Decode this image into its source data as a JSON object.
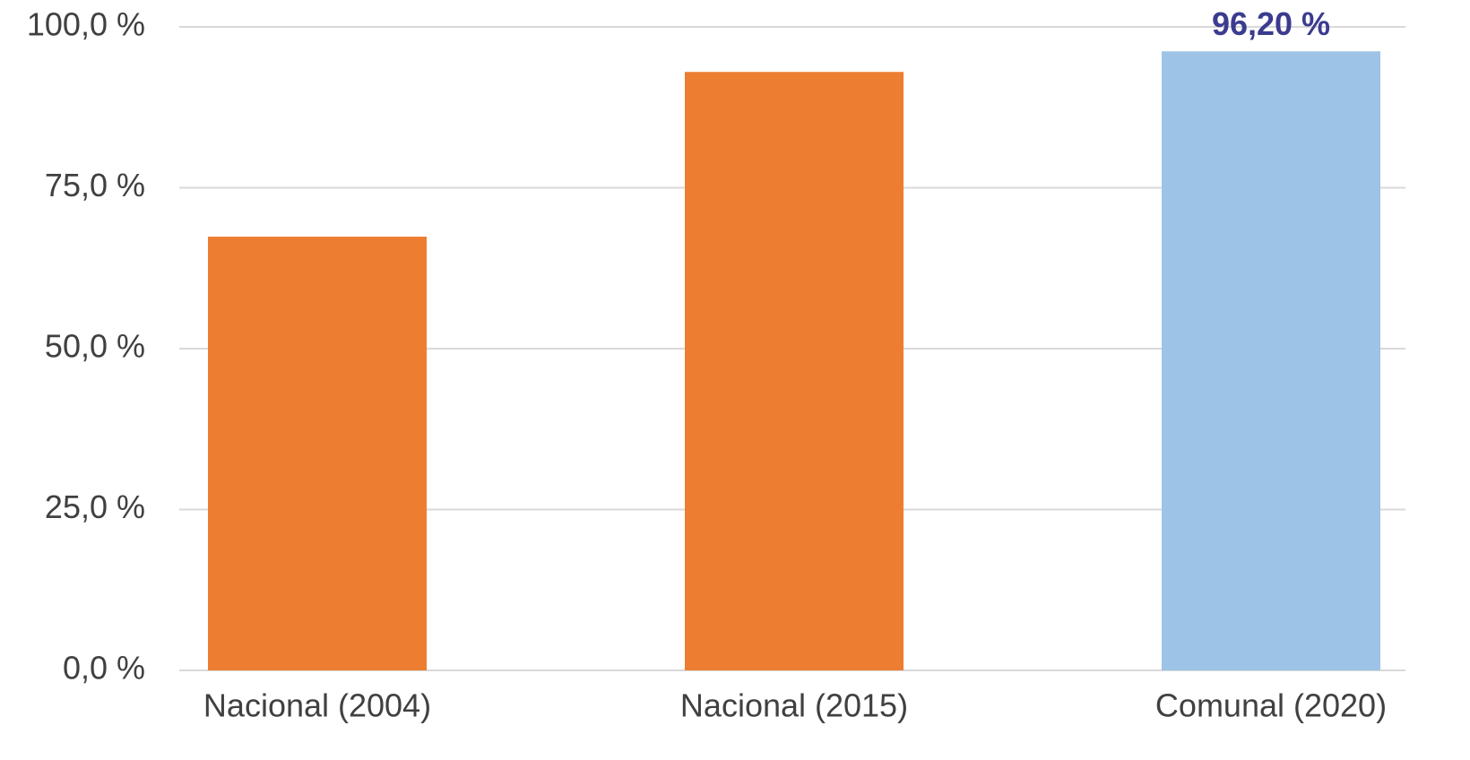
{
  "chart_data": {
    "type": "bar",
    "categories": [
      "Nacional (2004)",
      "Nacional (2015)",
      "Comunal (2020)"
    ],
    "values": [
      67.4,
      93.0,
      96.2
    ],
    "value_labels": [
      null,
      null,
      "96,20 %"
    ],
    "colors": [
      "#ed7d31",
      "#ed7d31",
      "#9dc3e6"
    ],
    "ylim": [
      0,
      100
    ],
    "yticks": [
      {
        "value": 0,
        "label": "0,0 %"
      },
      {
        "value": 25,
        "label": "25,0 %"
      },
      {
        "value": 50,
        "label": "50,0 %"
      },
      {
        "value": 75,
        "label": "75,0 %"
      },
      {
        "value": 100,
        "label": "100,0 %"
      }
    ],
    "grid": true
  }
}
